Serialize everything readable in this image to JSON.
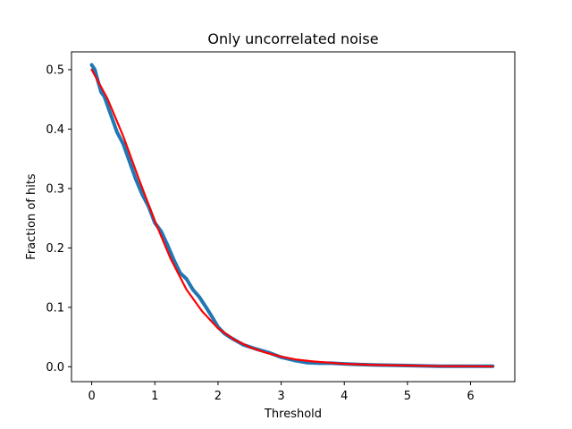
{
  "chart_data": {
    "type": "line",
    "title": "Only uncorrelated noise",
    "xlabel": "Threshold",
    "ylabel": "Fraction of hits",
    "xlim": [
      -0.32,
      6.7
    ],
    "ylim": [
      -0.025,
      0.53
    ],
    "xticks": [
      0,
      1,
      2,
      3,
      4,
      5,
      6
    ],
    "yticks": [
      0.0,
      0.1,
      0.2,
      0.3,
      0.4,
      0.5
    ],
    "ytick_labels": [
      "0.0",
      "0.1",
      "0.2",
      "0.3",
      "0.4",
      "0.5"
    ],
    "grid": false,
    "series": [
      {
        "color": "#1f77b4",
        "x": [
          0.0,
          0.05,
          0.1,
          0.15,
          0.2,
          0.3,
          0.4,
          0.5,
          0.6,
          0.7,
          0.8,
          0.9,
          1.0,
          1.1,
          1.2,
          1.3,
          1.4,
          1.5,
          1.6,
          1.7,
          1.8,
          1.9,
          2.0,
          2.1,
          2.2,
          2.4,
          2.6,
          2.8,
          3.0,
          3.2,
          3.4,
          3.6,
          3.8,
          4.0,
          4.2,
          4.5,
          5.0,
          5.5,
          6.0,
          6.35
        ],
        "y": [
          0.508,
          0.5,
          0.48,
          0.462,
          0.455,
          0.425,
          0.395,
          0.375,
          0.345,
          0.315,
          0.29,
          0.27,
          0.242,
          0.228,
          0.205,
          0.18,
          0.158,
          0.148,
          0.13,
          0.118,
          0.102,
          0.085,
          0.067,
          0.056,
          0.049,
          0.037,
          0.03,
          0.024,
          0.016,
          0.011,
          0.007,
          0.006,
          0.006,
          0.005,
          0.004,
          0.003,
          0.002,
          0.001,
          0.001,
          0.001
        ]
      },
      {
        "color": "#ff0000",
        "x": [
          0.0,
          0.25,
          0.5,
          0.75,
          1.0,
          1.25,
          1.5,
          1.75,
          2.0,
          2.25,
          2.5,
          2.75,
          3.0,
          3.25,
          3.5,
          3.75,
          4.0,
          4.5,
          5.0,
          5.5,
          6.0,
          6.35
        ],
        "y": [
          0.5,
          0.451,
          0.388,
          0.315,
          0.245,
          0.182,
          0.13,
          0.093,
          0.065,
          0.046,
          0.033,
          0.024,
          0.017,
          0.012,
          0.009,
          0.007,
          0.005,
          0.003,
          0.002,
          0.001,
          0.0008,
          0.0006
        ]
      }
    ]
  }
}
